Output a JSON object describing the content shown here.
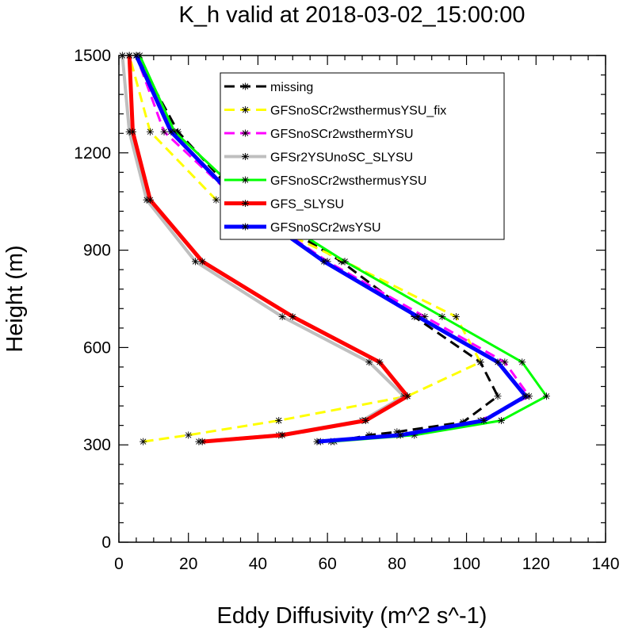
{
  "chart_data": {
    "type": "line",
    "title": "K_h valid at 2018-03-02_15:00:00",
    "xlabel": "Eddy Diffusivity (m^2 s^-1)",
    "ylabel": "Height (m)",
    "xlim": [
      0,
      140
    ],
    "ylim": [
      0,
      1500
    ],
    "xticks": [
      "0",
      "20",
      "40",
      "60",
      "80",
      "100",
      "120",
      "140"
    ],
    "yticks": [
      "0",
      "300",
      "600",
      "900",
      "1200",
      "1500"
    ],
    "grid": false,
    "legend_position": "upper-center",
    "series": [
      {
        "name": "missing",
        "color": "#000000",
        "dash": "dashed",
        "width": 3,
        "x": [
          62,
          72,
          80,
          99,
          109,
          104,
          85,
          64,
          35,
          17,
          5
        ],
        "y": [
          310,
          330,
          340,
          370,
          450,
          555,
          695,
          865,
          1055,
          1265,
          1500
        ]
      },
      {
        "name": "GFSnoSCr2wsthermusYSU_fix",
        "color": "#ffff00",
        "dash": "dashed",
        "width": 3,
        "x": [
          7,
          20,
          46,
          83,
          104,
          97,
          65,
          28,
          9,
          3
        ],
        "y": [
          310,
          330,
          375,
          450,
          555,
          695,
          865,
          1055,
          1265,
          1500
        ]
      },
      {
        "name": "GFSnoSCr2wsthermYSU",
        "color": "#ff00ff",
        "dash": "dashed",
        "width": 3,
        "x": [
          58,
          80,
          104,
          118,
          111,
          88,
          60,
          34,
          13,
          5
        ],
        "y": [
          310,
          330,
          375,
          450,
          555,
          695,
          865,
          1055,
          1265,
          1500
        ]
      },
      {
        "name": "GFSr2YSUnoSC_SLYSU",
        "color": "#bfbfbf",
        "dash": "solid",
        "width": 4,
        "x": [
          23,
          46,
          70,
          82,
          72,
          47,
          22,
          8,
          3,
          1
        ],
        "y": [
          310,
          330,
          375,
          450,
          555,
          695,
          865,
          1055,
          1265,
          1500
        ]
      },
      {
        "name": "GFSnoSCr2wsthermusYSU",
        "color": "#00ff00",
        "dash": "solid",
        "width": 3,
        "x": [
          61,
          85,
          110,
          123,
          116,
          93,
          65,
          37,
          16,
          6
        ],
        "y": [
          310,
          330,
          375,
          450,
          555,
          695,
          865,
          1055,
          1265,
          1500
        ]
      },
      {
        "name": "GFS_SLYSU",
        "color": "#ff0000",
        "dash": "solid",
        "width": 5,
        "x": [
          24,
          47,
          71,
          83,
          75,
          50,
          24,
          9,
          4,
          3
        ],
        "y": [
          310,
          330,
          375,
          450,
          555,
          695,
          865,
          1055,
          1265,
          1500
        ]
      },
      {
        "name": "GFSnoSCr2wsYSU",
        "color": "#0000ff",
        "dash": "solid",
        "width": 5,
        "x": [
          57,
          81,
          105,
          117,
          109,
          86,
          59,
          34,
          15,
          5
        ],
        "y": [
          310,
          330,
          375,
          450,
          555,
          695,
          865,
          1055,
          1265,
          1500
        ]
      }
    ]
  }
}
